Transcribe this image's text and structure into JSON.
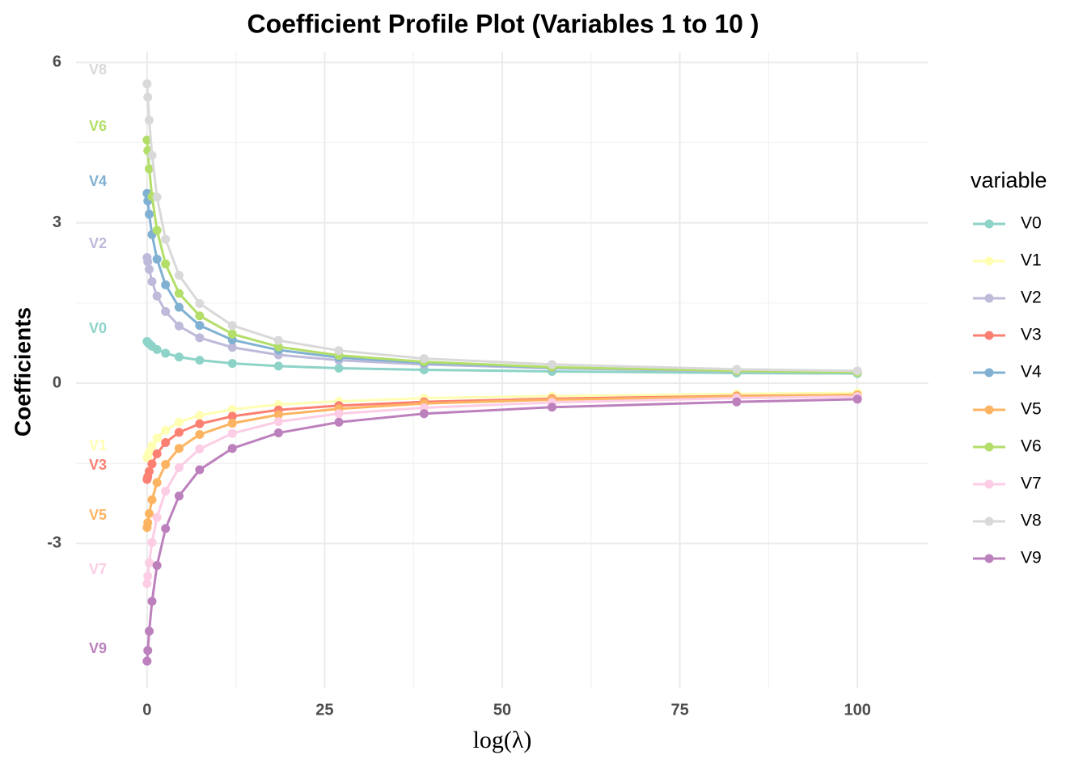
{
  "chart_data": {
    "type": "line",
    "title": "Coefficient Profile Plot (Variables 1 to 10 )",
    "x_label": "log(λ)",
    "y_label": "Coefficients",
    "legend_title": "variable",
    "legend_position": "right",
    "grid": true,
    "xlim": [
      -10,
      110
    ],
    "ylim": [
      -5.7,
      6.2
    ],
    "xticks": [
      0,
      25,
      50,
      75,
      100
    ],
    "yticks": [
      -3,
      0,
      3,
      6
    ],
    "x": [
      0,
      0.1,
      0.3,
      0.7,
      1.4,
      2.6,
      4.5,
      7.4,
      12,
      18.5,
      27,
      39,
      57,
      83,
      100
    ],
    "series": [
      {
        "name": "V0",
        "color": "#8dd3c7",
        "values": [
          0.78,
          0.76,
          0.74,
          0.69,
          0.63,
          0.56,
          0.49,
          0.43,
          0.37,
          0.32,
          0.28,
          0.25,
          0.22,
          0.19,
          0.18
        ]
      },
      {
        "name": "V1",
        "color": "#ffffb3",
        "values": [
          -1.4,
          -1.36,
          -1.29,
          -1.17,
          -1.03,
          -0.88,
          -0.73,
          -0.6,
          -0.49,
          -0.4,
          -0.34,
          -0.28,
          -0.24,
          -0.2,
          -0.18
        ]
      },
      {
        "name": "V2",
        "color": "#bebada",
        "values": [
          2.35,
          2.27,
          2.13,
          1.9,
          1.63,
          1.34,
          1.07,
          0.85,
          0.67,
          0.53,
          0.43,
          0.35,
          0.28,
          0.22,
          0.2
        ]
      },
      {
        "name": "V3",
        "color": "#fb8072",
        "values": [
          -1.8,
          -1.75,
          -1.65,
          -1.51,
          -1.32,
          -1.11,
          -0.92,
          -0.76,
          -0.62,
          -0.5,
          -0.42,
          -0.35,
          -0.29,
          -0.24,
          -0.22
        ]
      },
      {
        "name": "V4",
        "color": "#80b1d3",
        "values": [
          3.55,
          3.41,
          3.16,
          2.78,
          2.32,
          1.84,
          1.42,
          1.08,
          0.81,
          0.62,
          0.48,
          0.38,
          0.29,
          0.23,
          0.2
        ]
      },
      {
        "name": "V5",
        "color": "#fdb462",
        "values": [
          -2.7,
          -2.61,
          -2.44,
          -2.18,
          -1.86,
          -1.52,
          -1.22,
          -0.96,
          -0.75,
          -0.59,
          -0.48,
          -0.38,
          -0.31,
          -0.25,
          -0.22
        ]
      },
      {
        "name": "V6",
        "color": "#b3de69",
        "values": [
          4.55,
          4.35,
          4.01,
          3.49,
          2.86,
          2.23,
          1.68,
          1.26,
          0.92,
          0.68,
          0.52,
          0.4,
          0.3,
          0.23,
          0.2
        ]
      },
      {
        "name": "V7",
        "color": "#fccde5",
        "values": [
          -3.75,
          -3.61,
          -3.36,
          -2.98,
          -2.51,
          -2.02,
          -1.58,
          -1.23,
          -0.94,
          -0.72,
          -0.57,
          -0.46,
          -0.36,
          -0.28,
          -0.25
        ]
      },
      {
        "name": "V8",
        "color": "#d9d9d9",
        "values": [
          5.6,
          5.35,
          4.92,
          4.26,
          3.48,
          2.69,
          2.02,
          1.49,
          1.08,
          0.8,
          0.61,
          0.46,
          0.35,
          0.26,
          0.23
        ]
      },
      {
        "name": "V9",
        "color": "#bc80bd",
        "values": [
          -5.2,
          -5.0,
          -4.64,
          -4.08,
          -3.41,
          -2.72,
          -2.11,
          -1.62,
          -1.22,
          -0.93,
          -0.73,
          -0.57,
          -0.45,
          -0.35,
          -0.3
        ]
      }
    ]
  }
}
